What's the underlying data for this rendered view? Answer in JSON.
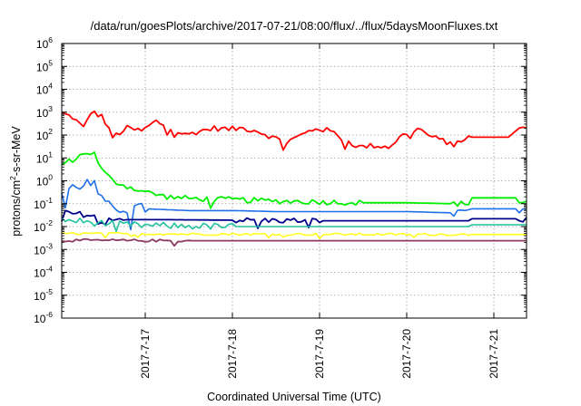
{
  "chart_data": {
    "type": "line",
    "title": "/data/run/goesPlots/archive/2017-07-21/08:00/flux/../flux/5daysMoonFluxes.txt",
    "xlabel": "Coordinated Universal Time (UTC)",
    "ylabel": {
      "prefix": "protons/cm",
      "sup": "2",
      "suffix": "-s-sr-MeV"
    },
    "y_scale": "log",
    "ylim": [
      1e-06,
      1000000.0
    ],
    "y_ticks": [
      {
        "base": "10",
        "exp": "-6",
        "value": 1e-06
      },
      {
        "base": "10",
        "exp": "-5",
        "value": 1e-05
      },
      {
        "base": "10",
        "exp": "-4",
        "value": 0.0001
      },
      {
        "base": "10",
        "exp": "-3",
        "value": 0.001
      },
      {
        "base": "10",
        "exp": "-2",
        "value": 0.01
      },
      {
        "base": "10",
        "exp": "-1",
        "value": 0.1
      },
      {
        "base": "10",
        "exp": "0",
        "value": 1
      },
      {
        "base": "10",
        "exp": "1",
        "value": 10
      },
      {
        "base": "10",
        "exp": "2",
        "value": 100
      },
      {
        "base": "10",
        "exp": "3",
        "value": 1000
      },
      {
        "base": "10",
        "exp": "4",
        "value": 10000
      },
      {
        "base": "10",
        "exp": "5",
        "value": 100000
      },
      {
        "base": "10",
        "exp": "6",
        "value": 1000000
      }
    ],
    "xlim": [
      "2017-07-16 01:00",
      "2017-07-21 09:00"
    ],
    "x_ticks": [
      {
        "label": "2017-7-17",
        "date": "2017-07-17 00:00"
      },
      {
        "label": "2017-7-18",
        "date": "2017-07-18 00:00"
      },
      {
        "label": "2017-7-19",
        "date": "2017-07-19 00:00"
      },
      {
        "label": "2017-7-20",
        "date": "2017-07-20 00:00"
      },
      {
        "label": "2017-7-21",
        "date": "2017-07-21 00:00"
      }
    ],
    "grid": true,
    "series": [
      {
        "color": "#ff0000",
        "width": 1.8,
        "noise": 0.12,
        "points": [
          [
            "2017-07-16 01:00",
            900
          ],
          [
            "2017-07-16 04:00",
            600
          ],
          [
            "2017-07-16 07:00",
            200
          ],
          [
            "2017-07-16 09:00",
            1000
          ],
          [
            "2017-07-16 12:00",
            700
          ],
          [
            "2017-07-16 15:00",
            80
          ],
          [
            "2017-07-16 19:00",
            200
          ],
          [
            "2017-07-16 23:00",
            150
          ],
          [
            "2017-07-17 03:00",
            400
          ],
          [
            "2017-07-17 07:00",
            200
          ],
          [
            "2017-07-17 11:00",
            100
          ],
          [
            "2017-07-17 15:00",
            150
          ],
          [
            "2017-07-17 19:00",
            200
          ],
          [
            "2017-07-17 23:00",
            180
          ],
          [
            "2017-07-18 03:00",
            200
          ],
          [
            "2017-07-18 07:00",
            150
          ],
          [
            "2017-07-18 11:00",
            80
          ],
          [
            "2017-07-18 15:00",
            50
          ],
          [
            "2017-07-18 19:00",
            100
          ],
          [
            "2017-07-18 23:00",
            200
          ],
          [
            "2017-07-19 03:00",
            150
          ],
          [
            "2017-07-19 07:00",
            60
          ],
          [
            "2017-07-19 11:00",
            30
          ],
          [
            "2017-07-19 15:00",
            35
          ],
          [
            "2017-07-19 19:00",
            30
          ],
          [
            "2017-07-19 23:00",
            100
          ],
          [
            "2017-07-20 03:00",
            200
          ],
          [
            "2017-07-20 07:00",
            80
          ],
          [
            "2017-07-20 11:00",
            50
          ],
          [
            "2017-07-20 15:00",
            60
          ],
          [
            "2017-07-20 17:00",
            80
          ],
          [
            "2017-07-21 04:00",
            80
          ],
          [
            "2017-07-21 06:00",
            150
          ],
          [
            "2017-07-21 09:00",
            230
          ]
        ]
      },
      {
        "color": "#00ee00",
        "width": 1.8,
        "noise": 0.12,
        "points": [
          [
            "2017-07-16 01:00",
            5
          ],
          [
            "2017-07-16 05:00",
            10
          ],
          [
            "2017-07-16 08:00",
            18
          ],
          [
            "2017-07-16 10:00",
            15
          ],
          [
            "2017-07-16 12:00",
            3
          ],
          [
            "2017-07-16 15:00",
            1
          ],
          [
            "2017-07-16 20:00",
            0.5
          ],
          [
            "2017-07-17 01:00",
            0.3
          ],
          [
            "2017-07-17 06:00",
            0.2
          ],
          [
            "2017-07-17 12:00",
            0.17
          ],
          [
            "2017-07-18 00:00",
            0.15
          ],
          [
            "2017-07-18 12:00",
            0.13
          ],
          [
            "2017-07-19 00:00",
            0.12
          ],
          [
            "2017-07-19 12:00",
            0.11
          ],
          [
            "2017-07-20 00:00",
            0.11
          ],
          [
            "2017-07-20 12:00",
            0.1
          ],
          [
            "2017-07-20 17:00",
            0.1
          ],
          [
            "2017-07-20 18:00",
            0.18
          ],
          [
            "2017-07-21 06:00",
            0.18
          ],
          [
            "2017-07-21 07:00",
            0.11
          ],
          [
            "2017-07-21 09:00",
            0.13
          ]
        ]
      },
      {
        "color": "#1e6fe8",
        "width": 1.6,
        "noise": 0.25,
        "points": [
          [
            "2017-07-16 01:00",
            0.3
          ],
          [
            "2017-07-16 05:00",
            0.6
          ],
          [
            "2017-07-16 08:00",
            0.8
          ],
          [
            "2017-07-16 10:00",
            0.6
          ],
          [
            "2017-07-16 13:00",
            0.08
          ],
          [
            "2017-07-16 18:00",
            0.06
          ],
          [
            "2017-07-17 00:00",
            0.06
          ],
          [
            "2017-07-17 12:00",
            0.05
          ],
          [
            "2017-07-18 00:00",
            0.05
          ],
          [
            "2017-07-18 12:00",
            0.045
          ],
          [
            "2017-07-19 00:00",
            0.045
          ],
          [
            "2017-07-19 12:00",
            0.045
          ],
          [
            "2017-07-20 00:00",
            0.045
          ],
          [
            "2017-07-20 12:00",
            0.04
          ],
          [
            "2017-07-20 17:00",
            0.04
          ],
          [
            "2017-07-20 18:00",
            0.06
          ],
          [
            "2017-07-21 06:00",
            0.06
          ],
          [
            "2017-07-21 07:00",
            0.04
          ],
          [
            "2017-07-21 09:00",
            0.05
          ]
        ]
      },
      {
        "color": "#00008b",
        "width": 1.8,
        "noise": 0.12,
        "points": [
          [
            "2017-07-16 01:00",
            0.04
          ],
          [
            "2017-07-16 06:00",
            0.035
          ],
          [
            "2017-07-16 12:00",
            0.028
          ],
          [
            "2017-07-16 18:00",
            0.02
          ],
          [
            "2017-07-17 06:00",
            0.02
          ],
          [
            "2017-07-18 00:00",
            0.019
          ],
          [
            "2017-07-19 00:00",
            0.018
          ],
          [
            "2017-07-20 00:00",
            0.018
          ],
          [
            "2017-07-20 17:00",
            0.018
          ],
          [
            "2017-07-20 18:00",
            0.022
          ],
          [
            "2017-07-21 06:00",
            0.022
          ],
          [
            "2017-07-21 07:00",
            0.018
          ],
          [
            "2017-07-21 09:00",
            0.02
          ]
        ]
      },
      {
        "color": "#20c0a0",
        "width": 1.6,
        "noise": 0.15,
        "points": [
          [
            "2017-07-16 01:00",
            0.02
          ],
          [
            "2017-07-16 12:00",
            0.014
          ],
          [
            "2017-07-17 00:00",
            0.011
          ],
          [
            "2017-07-18 00:00",
            0.01
          ],
          [
            "2017-07-19 00:00",
            0.01
          ],
          [
            "2017-07-20 00:00",
            0.01
          ],
          [
            "2017-07-20 17:00",
            0.01
          ],
          [
            "2017-07-20 18:00",
            0.012
          ],
          [
            "2017-07-21 09:00",
            0.012
          ]
        ]
      },
      {
        "color": "#ffff22",
        "width": 1.6,
        "noise": 0.05,
        "points": [
          [
            "2017-07-16 01:00",
            0.005
          ],
          [
            "2017-07-17 12:00",
            0.0047
          ],
          [
            "2017-07-19 00:00",
            0.0046
          ],
          [
            "2017-07-20 17:00",
            0.0045
          ],
          [
            "2017-07-21 09:00",
            0.0045
          ]
        ]
      },
      {
        "color": "#8b3a62",
        "width": 1.8,
        "noise": 0.06,
        "points": [
          [
            "2017-07-16 01:00",
            0.0025
          ],
          [
            "2017-07-17 12:00",
            0.0024
          ],
          [
            "2017-07-19 00:00",
            0.0024
          ],
          [
            "2017-07-20 17:00",
            0.0024
          ],
          [
            "2017-07-21 09:00",
            0.0024
          ]
        ]
      }
    ]
  }
}
